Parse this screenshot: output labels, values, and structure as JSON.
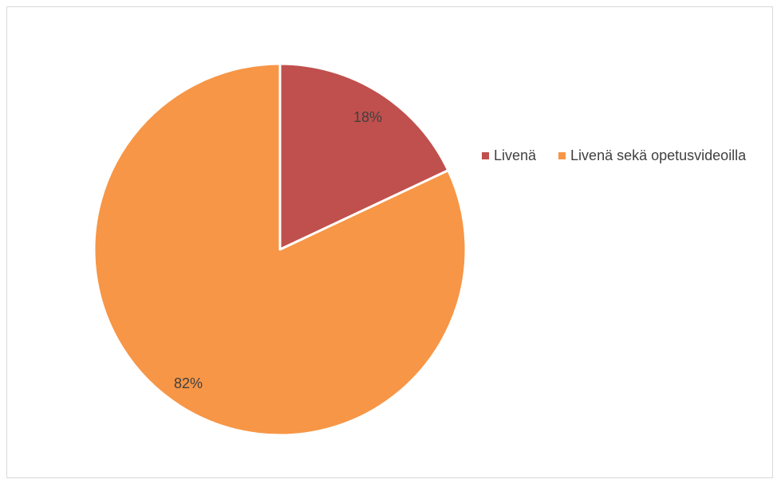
{
  "chart_data": {
    "type": "pie",
    "categories": [
      "Livenä",
      "Livenä sekä opetusvideoilla"
    ],
    "values": [
      18,
      82
    ],
    "data_labels": [
      "18%",
      "82%"
    ],
    "colors": [
      "#c0504d",
      "#f79646"
    ],
    "legend_position": "right",
    "start_angle": "top, clockwise",
    "slice_border_color": "#ffffff"
  },
  "legend": {
    "items": [
      {
        "label": "Livenä",
        "color": "#c0504d"
      },
      {
        "label": "Livenä sekä opetusvideoilla",
        "color": "#f79646"
      }
    ]
  }
}
